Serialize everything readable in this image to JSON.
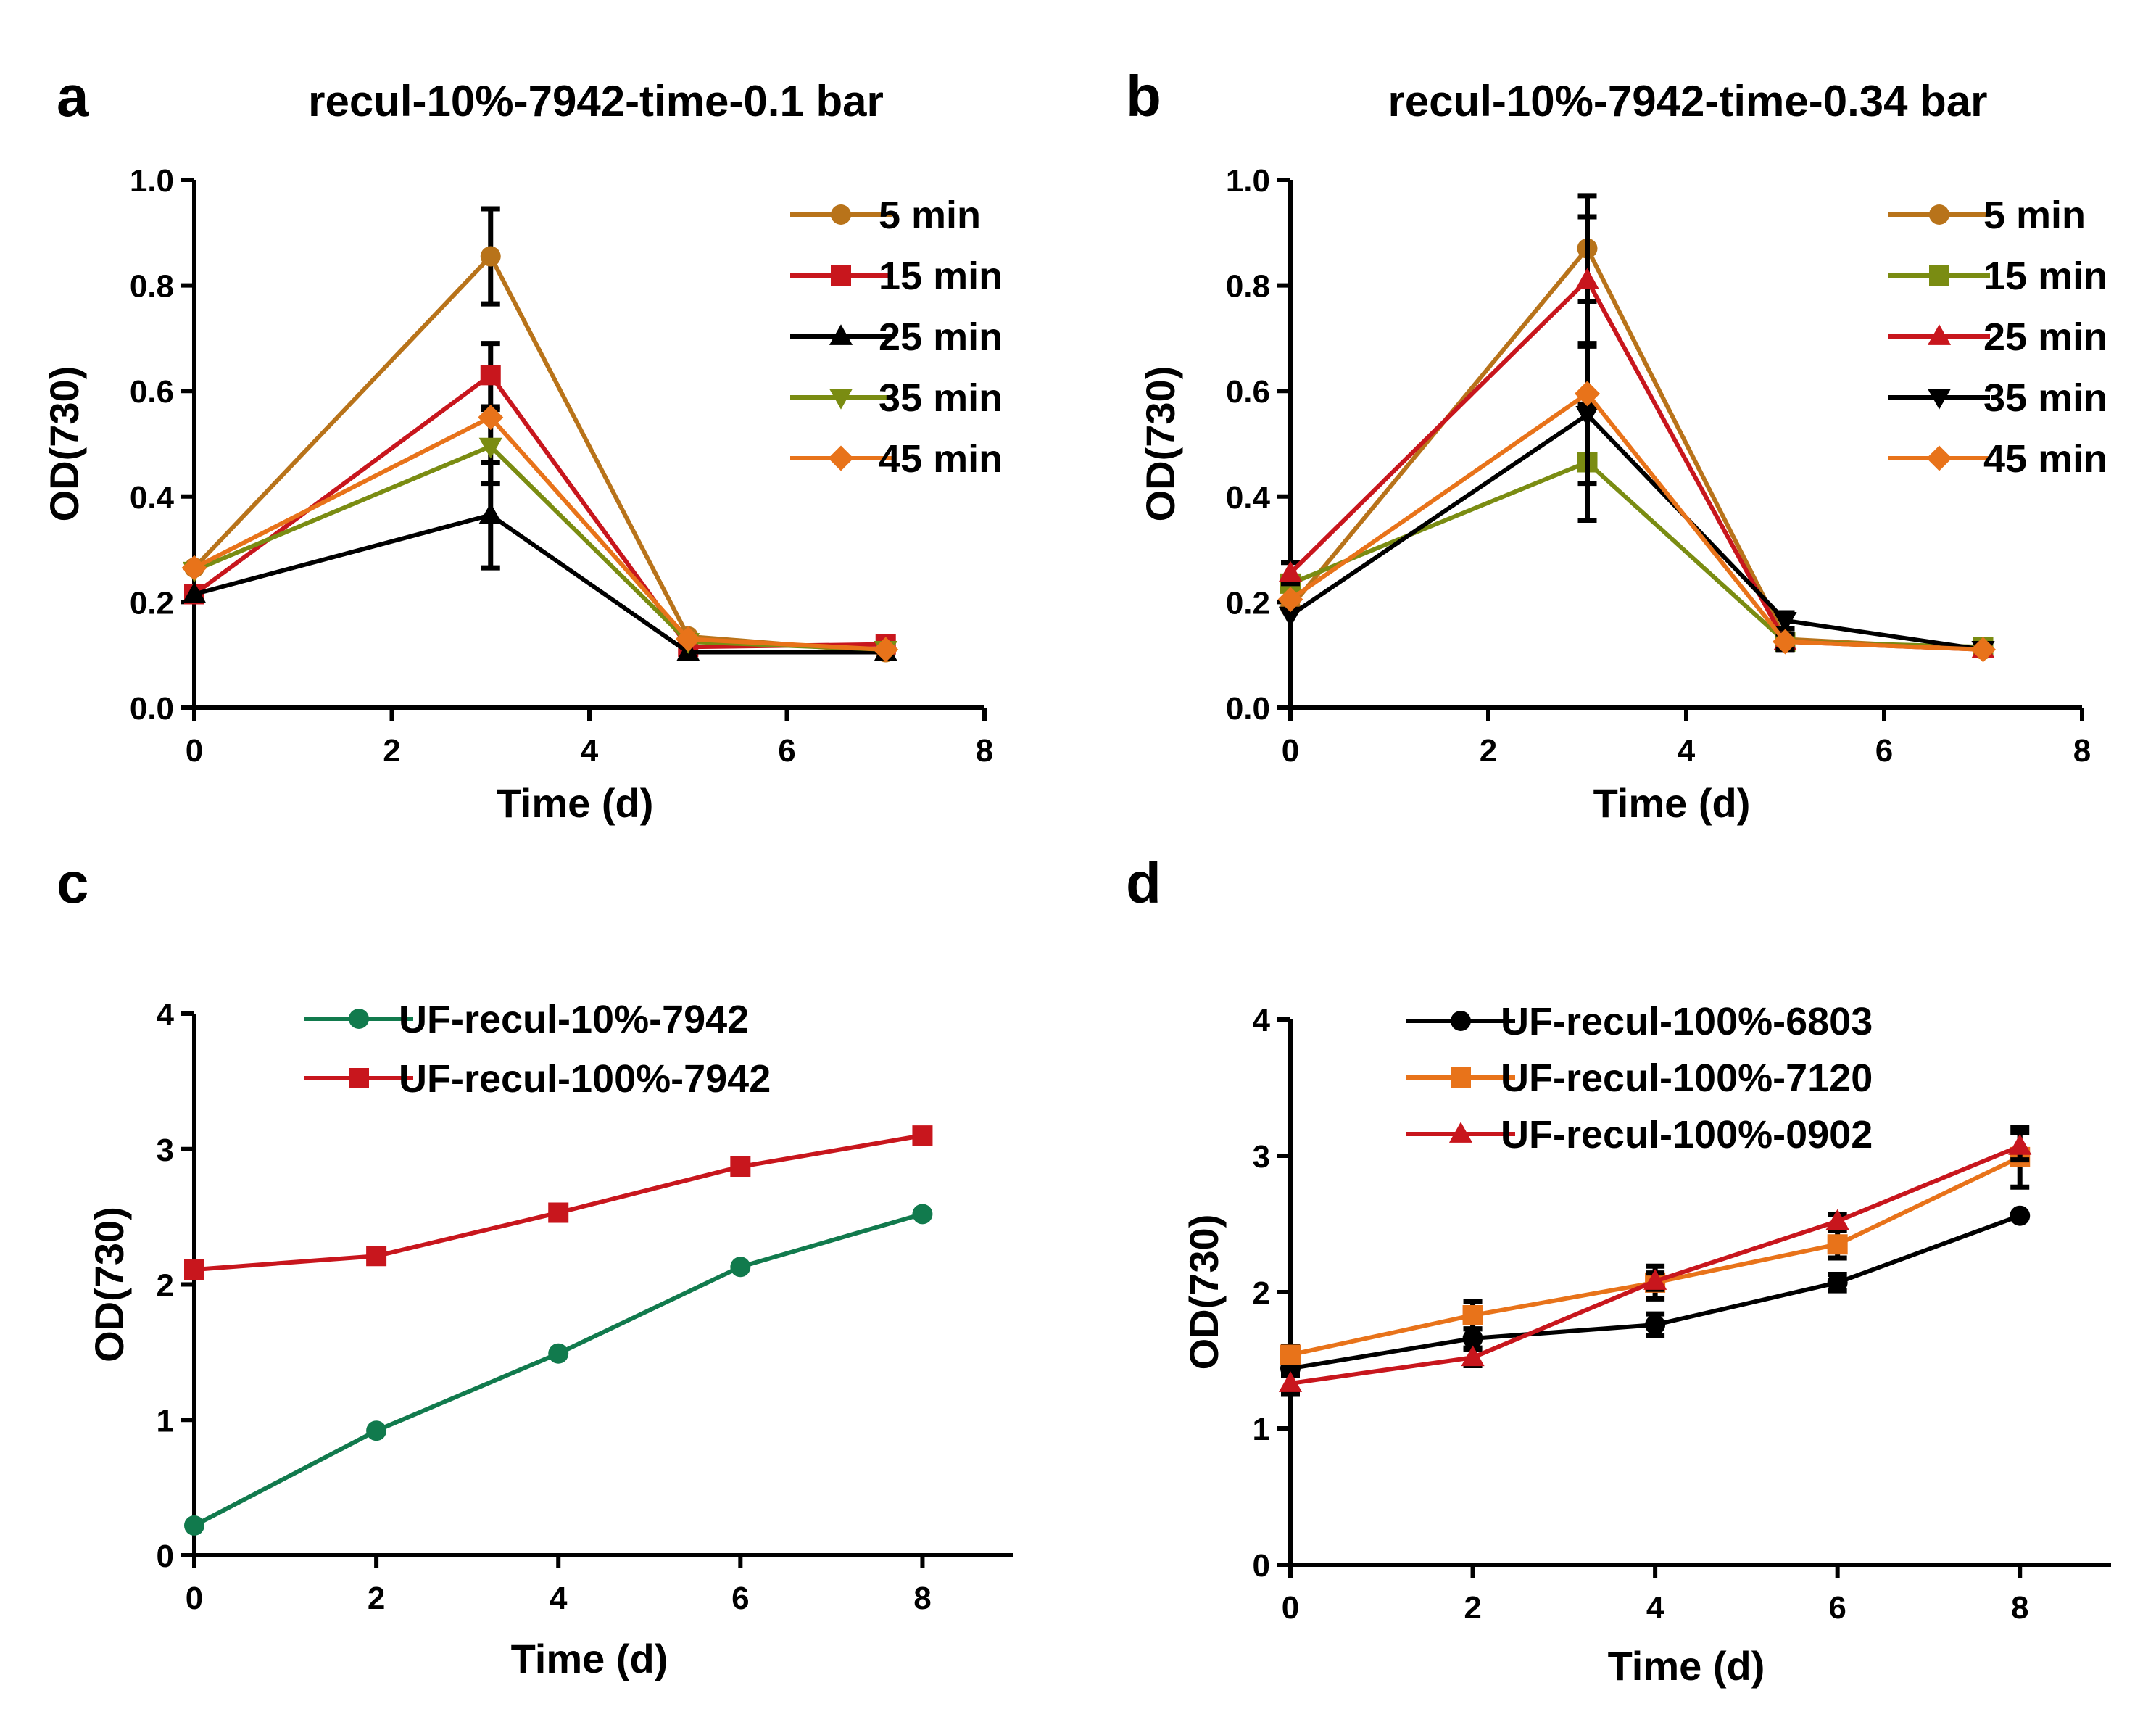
{
  "chart_data": [
    {
      "panel": "a",
      "type": "line",
      "title": "recul-10%-7942-time-0.1 bar",
      "xlabel": "Time (d)",
      "ylabel": "OD(730)",
      "xlim": [
        0,
        8
      ],
      "ylim": [
        0,
        1.0
      ],
      "xticks": [
        0,
        2,
        4,
        6,
        8
      ],
      "xtick_labels": [
        "0",
        "2",
        "4",
        "6",
        "8"
      ],
      "yticks": [
        0,
        0.2,
        0.4,
        0.6,
        0.8,
        1.0
      ],
      "ytick_labels": [
        "0.0",
        "0.2",
        "0.4",
        "0.6",
        "0.8",
        "1.0"
      ],
      "legend_position": "top-right",
      "x": [
        0,
        3,
        5,
        7
      ],
      "series": [
        {
          "name": "5 min",
          "color": "#B8731A",
          "marker": "circle",
          "values": [
            0.265,
            0.855,
            0.135,
            0.105
          ],
          "errors": [
            0.0,
            0.09,
            0.0,
            0.0
          ]
        },
        {
          "name": "15 min",
          "color": "#C8161D",
          "marker": "square",
          "values": [
            0.215,
            0.63,
            0.115,
            0.12
          ],
          "errors": [
            0.0,
            0.06,
            0.0,
            0.0
          ]
        },
        {
          "name": "25 min",
          "color": "#000000",
          "marker": "triangle-up",
          "values": [
            0.215,
            0.365,
            0.105,
            0.105
          ],
          "errors": [
            0.0,
            0.1,
            0.0,
            0.0
          ]
        },
        {
          "name": "35 min",
          "color": "#7A8C12",
          "marker": "triangle-down",
          "values": [
            0.26,
            0.495,
            0.125,
            0.11
          ],
          "errors": [
            0.0,
            0.07,
            0.0,
            0.0
          ]
        },
        {
          "name": "45 min",
          "color": "#E8731A",
          "marker": "diamond",
          "values": [
            0.265,
            0.55,
            0.13,
            0.11
          ],
          "errors": [
            0.0,
            0.0,
            0.0,
            0.0
          ]
        }
      ]
    },
    {
      "panel": "b",
      "type": "line",
      "title": "recul-10%-7942-time-0.34 bar",
      "xlabel": "Time (d)",
      "ylabel": "OD(730)",
      "xlim": [
        0,
        8
      ],
      "ylim": [
        0,
        1.0
      ],
      "xticks": [
        0,
        2,
        4,
        6,
        8
      ],
      "xtick_labels": [
        "0",
        "2",
        "4",
        "6",
        "8"
      ],
      "yticks": [
        0,
        0.2,
        0.4,
        0.6,
        0.8,
        1.0
      ],
      "ytick_labels": [
        "0.0",
        "0.2",
        "0.4",
        "0.6",
        "0.8",
        "1.0"
      ],
      "legend_position": "top-right",
      "x": [
        0,
        3,
        5,
        7
      ],
      "series": [
        {
          "name": "5 min",
          "color": "#B8731A",
          "marker": "circle",
          "values": [
            0.19,
            0.87,
            0.13,
            0.11
          ],
          "errors": [
            0.0,
            0.1,
            0.0,
            0.0
          ]
        },
        {
          "name": "15 min",
          "color": "#7A8C12",
          "marker": "square",
          "values": [
            0.235,
            0.465,
            0.125,
            0.115
          ],
          "errors": [
            0.0,
            0.11,
            0.0,
            0.0
          ]
        },
        {
          "name": "25 min",
          "color": "#C8161D",
          "marker": "triangle-up",
          "values": [
            0.255,
            0.81,
            0.125,
            0.11
          ],
          "errors": [
            0.02,
            0.12,
            0.0,
            0.0
          ]
        },
        {
          "name": "35 min",
          "color": "#000000",
          "marker": "triangle-down",
          "values": [
            0.175,
            0.555,
            0.165,
            0.11
          ],
          "errors": [
            0.0,
            0.13,
            0.015,
            0.0
          ]
        },
        {
          "name": "45 min",
          "color": "#E8731A",
          "marker": "diamond",
          "values": [
            0.205,
            0.595,
            0.125,
            0.11
          ],
          "errors": [
            0.0,
            0.0,
            0.015,
            0.0
          ]
        }
      ]
    },
    {
      "panel": "c",
      "type": "line",
      "title": "",
      "xlabel": "Time (d)",
      "ylabel": "OD(730)",
      "xlim": [
        0,
        9
      ],
      "ylim": [
        0,
        4
      ],
      "xticks": [
        0,
        2,
        4,
        6,
        8
      ],
      "xtick_labels": [
        "0",
        "2",
        "4",
        "6",
        "8"
      ],
      "yticks": [
        0,
        1,
        2,
        3,
        4
      ],
      "ytick_labels": [
        "0",
        "1",
        "2",
        "3",
        "4"
      ],
      "legend_position": "top-left",
      "x": [
        0,
        2,
        4,
        6,
        8
      ],
      "series": [
        {
          "name": "UF-recul-10%-7942",
          "color": "#117A4D",
          "marker": "circle",
          "values": [
            0.22,
            0.92,
            1.49,
            2.13,
            2.52
          ],
          "errors": [
            0,
            0,
            0,
            0,
            0
          ]
        },
        {
          "name": "UF-recul-100%-7942",
          "color": "#C8161D",
          "marker": "square",
          "values": [
            2.11,
            2.21,
            2.53,
            2.87,
            3.1
          ],
          "errors": [
            0,
            0,
            0,
            0,
            0
          ]
        }
      ]
    },
    {
      "panel": "d",
      "type": "line",
      "title": "",
      "xlabel": "Time (d)",
      "ylabel": "OD(730)",
      "xlim": [
        0,
        9
      ],
      "ylim": [
        0,
        4
      ],
      "xticks": [
        0,
        2,
        4,
        6,
        8
      ],
      "xtick_labels": [
        "0",
        "2",
        "4",
        "6",
        "8"
      ],
      "yticks": [
        0,
        1,
        2,
        3,
        4
      ],
      "ytick_labels": [
        "0",
        "1",
        "2",
        "3",
        "4"
      ],
      "legend_position": "top-left",
      "x": [
        0,
        2,
        4,
        6,
        8
      ],
      "series": [
        {
          "name": "UF-recul-100%-6803",
          "color": "#000000",
          "marker": "circle",
          "values": [
            1.44,
            1.66,
            1.76,
            2.07,
            2.56
          ],
          "errors": [
            0.05,
            0.07,
            0.08,
            0.06,
            0.0
          ]
        },
        {
          "name": "UF-recul-100%-7120",
          "color": "#E8731A",
          "marker": "square",
          "values": [
            1.54,
            1.83,
            2.07,
            2.35,
            2.99
          ],
          "errors": [
            0.06,
            0.1,
            0.12,
            0.1,
            0.22
          ]
        },
        {
          "name": "UF-recul-100%-0902",
          "color": "#C8161D",
          "marker": "triangle-up",
          "values": [
            1.33,
            1.52,
            2.08,
            2.52,
            3.07
          ],
          "errors": [
            0.08,
            0.06,
            0.06,
            0.05,
            0.1
          ]
        }
      ]
    }
  ]
}
